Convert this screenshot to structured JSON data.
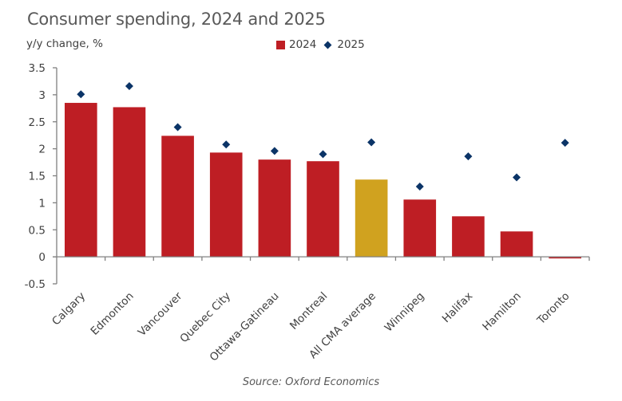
{
  "chart_data": {
    "type": "bar",
    "title": "Consumer spending, 2024 and 2025",
    "ylabel": "y/y change, %",
    "xlabel": "",
    "source": "Source: Oxford Economics",
    "ylim": [
      -0.5,
      3.5
    ],
    "yticks": [
      -0.5,
      0,
      0.5,
      1,
      1.5,
      2,
      2.5,
      3,
      3.5
    ],
    "ytick_labels": [
      "-0.5",
      "0",
      "0.5",
      "1",
      "1.5",
      "2",
      "2.5",
      "3",
      "3.5"
    ],
    "grid": false,
    "legend_position": "top-center",
    "categories": [
      "Calgary",
      "Edmonton",
      "Vancouver",
      "Quebec City",
      "Ottawa-Gatineau",
      "Montreal",
      "All CMA average",
      "Winnipeg",
      "Halifax",
      "Hamilton",
      "Toronto"
    ],
    "highlight_category": "All CMA average",
    "series": [
      {
        "name": "2024",
        "kind": "bar",
        "color": "#be1e24",
        "highlight_color": "#d0a21f",
        "values": [
          2.85,
          2.77,
          2.24,
          1.93,
          1.8,
          1.77,
          1.43,
          1.06,
          0.75,
          0.47,
          -0.03
        ]
      },
      {
        "name": "2025",
        "kind": "diamond",
        "color": "#0b3467",
        "values": [
          3.01,
          3.16,
          2.4,
          2.08,
          1.96,
          1.9,
          2.12,
          1.3,
          1.86,
          1.47,
          2.11
        ]
      }
    ]
  }
}
